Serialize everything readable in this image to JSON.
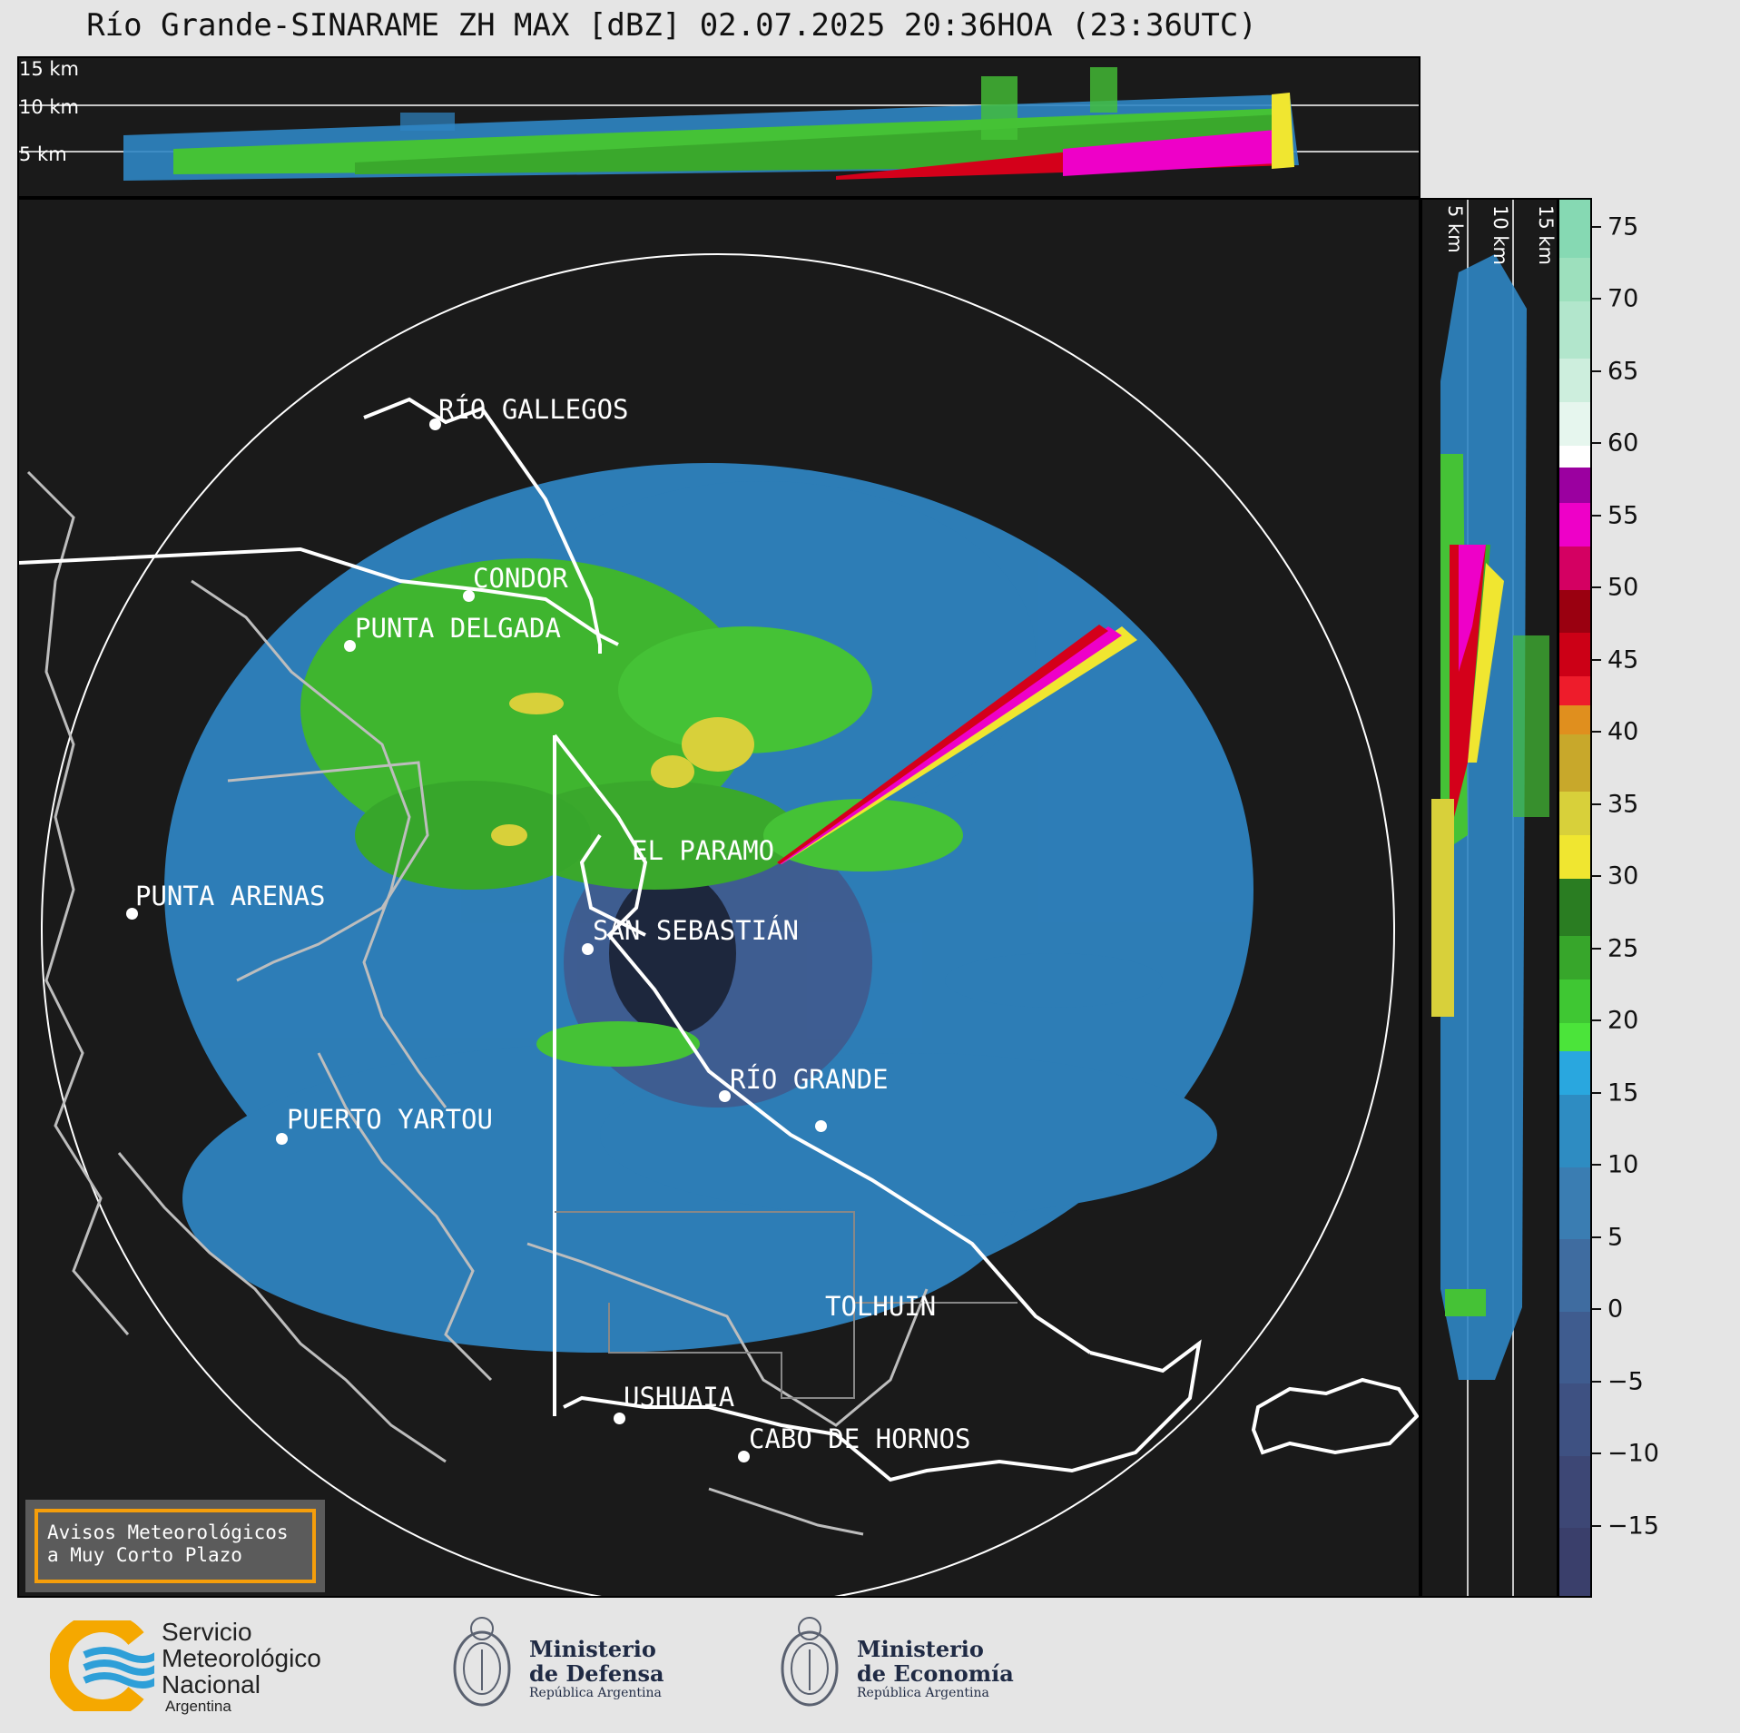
{
  "title": "Río Grande-SINARAME ZH MAX [dBZ] 02.07.2025 20:36HOA (23:36UTC)",
  "top_panel": {
    "height_labels": [
      "15 km",
      "10 km",
      "5 km"
    ]
  },
  "side_panel": {
    "height_labels": [
      "5 km",
      "10 km",
      "15 km"
    ]
  },
  "map": {
    "cities": [
      {
        "name": "RÍO GALLEGOS"
      },
      {
        "name": "CONDOR"
      },
      {
        "name": "PUNTA DELGADA"
      },
      {
        "name": "EL PARAMO"
      },
      {
        "name": "PUNTA ARENAS"
      },
      {
        "name": "SAN SEBASTIÁN"
      },
      {
        "name": "RÍO GRANDE"
      },
      {
        "name": "PUERTO YARTOU"
      },
      {
        "name": "TOLHUIN"
      },
      {
        "name": "USHUAIA"
      },
      {
        "name": "CABO DE HORNOS"
      }
    ]
  },
  "colorbar": {
    "unit": "dBZ",
    "range": [
      -20,
      77
    ],
    "tick_labels": [
      "75",
      "70",
      "65",
      "60",
      "55",
      "50",
      "45",
      "40",
      "35",
      "30",
      "25",
      "20",
      "15",
      "10",
      "5",
      "0",
      "−5",
      "−10",
      "−15"
    ],
    "tick_values": [
      75,
      70,
      65,
      60,
      55,
      50,
      45,
      40,
      35,
      30,
      25,
      20,
      15,
      10,
      5,
      0,
      -5,
      -10,
      -15
    ],
    "color_bands": [
      {
        "from": -20,
        "to": -15,
        "color": "#3a3f6b"
      },
      {
        "from": -15,
        "to": -10,
        "color": "#3d4775"
      },
      {
        "from": -10,
        "to": -5,
        "color": "#3e5182"
      },
      {
        "from": -5,
        "to": 0,
        "color": "#3f5c8f"
      },
      {
        "from": 0,
        "to": 5,
        "color": "#3f6ca0"
      },
      {
        "from": 5,
        "to": 10,
        "color": "#3a7db2"
      },
      {
        "from": 10,
        "to": 15,
        "color": "#2e8cc2"
      },
      {
        "from": 15,
        "to": 18,
        "color": "#29a7df"
      },
      {
        "from": 18,
        "to": 20,
        "color": "#4be43a"
      },
      {
        "from": 20,
        "to": 23,
        "color": "#3fc733"
      },
      {
        "from": 23,
        "to": 26,
        "color": "#37a62b"
      },
      {
        "from": 26,
        "to": 30,
        "color": "#2a7d22"
      },
      {
        "from": 30,
        "to": 33,
        "color": "#f0e630"
      },
      {
        "from": 33,
        "to": 36,
        "color": "#d8d03a"
      },
      {
        "from": 36,
        "to": 40,
        "color": "#c8a82b"
      },
      {
        "from": 40,
        "to": 42,
        "color": "#e08f1e"
      },
      {
        "from": 42,
        "to": 44,
        "color": "#ee1c2b"
      },
      {
        "from": 44,
        "to": 47,
        "color": "#cc0016"
      },
      {
        "from": 47,
        "to": 50,
        "color": "#9a0010"
      },
      {
        "from": 50,
        "to": 53,
        "color": "#d40062"
      },
      {
        "from": 53,
        "to": 56,
        "color": "#ee00c8"
      },
      {
        "from": 56,
        "to": 58.5,
        "color": "#9b00a0"
      },
      {
        "from": 58.5,
        "to": 60,
        "color": "#ffffff"
      },
      {
        "from": 60,
        "to": 63,
        "color": "#e6f6ee"
      },
      {
        "from": 63,
        "to": 66,
        "color": "#cdeedd"
      },
      {
        "from": 66,
        "to": 70,
        "color": "#b2e6cc"
      },
      {
        "from": 70,
        "to": 73,
        "color": "#9de0bd"
      },
      {
        "from": 73,
        "to": 77,
        "color": "#86d9b3"
      }
    ]
  },
  "alert_box": {
    "line1": "Avisos Meteorológicos",
    "line2": "a Muy Corto Plazo"
  },
  "logos": {
    "smn": {
      "line1": "Servicio",
      "line2": "Meteorológico",
      "line3": "Nacional",
      "line4": "Argentina"
    },
    "defensa": {
      "line1": "Ministerio",
      "line2": "de Defensa",
      "line3": "República Argentina"
    },
    "economia": {
      "line1": "Ministerio",
      "line2": "de Economía",
      "line3": "República Argentina"
    }
  },
  "colors": {
    "panel_bg": "#1a1a1a",
    "page_bg": "#e5e5e5",
    "alert_border": "#f59e0b",
    "smn_orange": "#f5a800",
    "smn_blue": "#2e9fd8"
  }
}
